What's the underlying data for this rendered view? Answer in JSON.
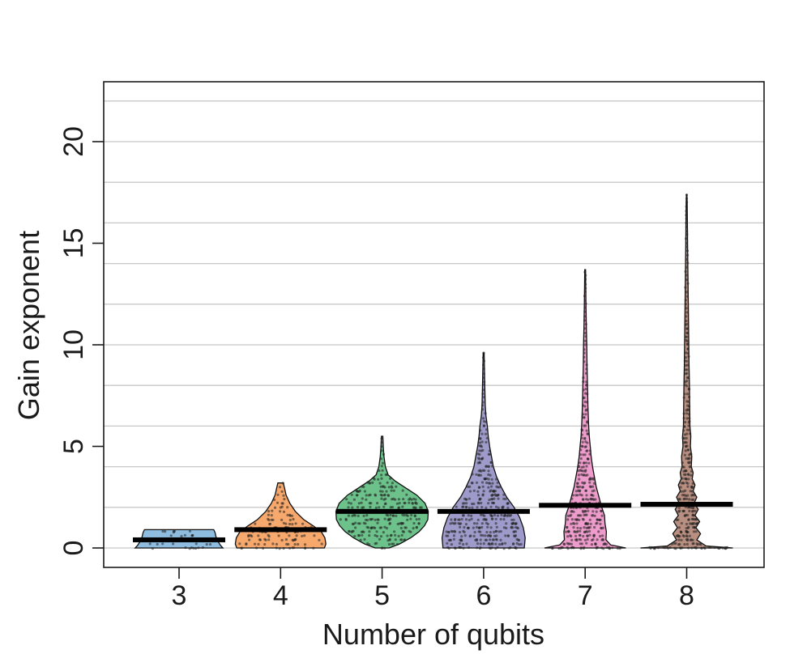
{
  "chart_data": {
    "type": "violin",
    "title": "",
    "xlabel": "Number of qubits",
    "ylabel": "Gain exponent",
    "ylim": [
      -1,
      22.5
    ],
    "yticks": [
      0,
      5,
      10,
      15,
      20
    ],
    "grid": true,
    "categories": [
      "3",
      "4",
      "5",
      "6",
      "7",
      "8"
    ],
    "series": [
      {
        "category": "3",
        "color": "#8fbde0",
        "min": 0.0,
        "max": 0.9,
        "median": 0.4,
        "density": [
          [
            0.0,
            0.95
          ],
          [
            0.12,
            0.9
          ],
          [
            0.3,
            0.85
          ],
          [
            0.55,
            0.8
          ],
          [
            0.75,
            0.78
          ],
          [
            0.9,
            0.75
          ]
        ]
      },
      {
        "category": "4",
        "color": "#f7a86c",
        "min": 0.0,
        "max": 3.2,
        "median": 0.9,
        "density": [
          [
            0.0,
            0.95
          ],
          [
            0.2,
            0.98
          ],
          [
            0.5,
            0.96
          ],
          [
            0.8,
            0.88
          ],
          [
            1.1,
            0.7
          ],
          [
            1.4,
            0.5
          ],
          [
            1.8,
            0.32
          ],
          [
            2.2,
            0.2
          ],
          [
            2.6,
            0.12
          ],
          [
            2.9,
            0.09
          ],
          [
            3.2,
            0.06
          ]
        ]
      },
      {
        "category": "5",
        "color": "#6cc28a",
        "min": 0.0,
        "max": 5.5,
        "median": 1.8,
        "density": [
          [
            0.0,
            0.15
          ],
          [
            0.2,
            0.38
          ],
          [
            0.5,
            0.62
          ],
          [
            0.8,
            0.8
          ],
          [
            1.1,
            0.92
          ],
          [
            1.4,
            0.99
          ],
          [
            1.8,
            1.0
          ],
          [
            2.2,
            0.93
          ],
          [
            2.6,
            0.75
          ],
          [
            3.0,
            0.48
          ],
          [
            3.3,
            0.28
          ],
          [
            3.6,
            0.13
          ],
          [
            4.0,
            0.07
          ],
          [
            4.5,
            0.04
          ],
          [
            5.0,
            0.025
          ],
          [
            5.5,
            0.015
          ]
        ]
      },
      {
        "category": "6",
        "color": "#9e9bcb",
        "min": 0.0,
        "max": 9.6,
        "median": 1.8,
        "density": [
          [
            0.0,
            0.88
          ],
          [
            0.5,
            0.9
          ],
          [
            1.0,
            0.86
          ],
          [
            1.5,
            0.78
          ],
          [
            2.0,
            0.66
          ],
          [
            2.5,
            0.5
          ],
          [
            3.0,
            0.38
          ],
          [
            3.5,
            0.28
          ],
          [
            4.0,
            0.21
          ],
          [
            4.5,
            0.17
          ],
          [
            5.0,
            0.13
          ],
          [
            5.5,
            0.1
          ],
          [
            6.0,
            0.08
          ],
          [
            6.5,
            0.05
          ],
          [
            7.0,
            0.035
          ],
          [
            8.0,
            0.025
          ],
          [
            9.0,
            0.015
          ],
          [
            9.6,
            0.01
          ]
        ]
      },
      {
        "category": "7",
        "color": "#ee9ccb",
        "min": 0.0,
        "max": 13.7,
        "median": 2.1,
        "density": [
          [
            0.0,
            0.88
          ],
          [
            0.15,
            0.55
          ],
          [
            0.4,
            0.45
          ],
          [
            0.8,
            0.46
          ],
          [
            1.2,
            0.43
          ],
          [
            1.6,
            0.42
          ],
          [
            2.0,
            0.36
          ],
          [
            2.5,
            0.3
          ],
          [
            3.0,
            0.24
          ],
          [
            3.5,
            0.2
          ],
          [
            4.0,
            0.16
          ],
          [
            4.5,
            0.13
          ],
          [
            5.0,
            0.11
          ],
          [
            5.5,
            0.09
          ],
          [
            6.0,
            0.075
          ],
          [
            7.0,
            0.06
          ],
          [
            8.0,
            0.05
          ],
          [
            9.0,
            0.04
          ],
          [
            10.0,
            0.035
          ],
          [
            11.0,
            0.025
          ],
          [
            12.0,
            0.018
          ],
          [
            13.0,
            0.012
          ],
          [
            13.7,
            0.008
          ]
        ]
      },
      {
        "category": "8",
        "color": "#b88f80",
        "min": 0.0,
        "max": 17.4,
        "median": 2.15,
        "density": [
          [
            0.0,
            1.0
          ],
          [
            0.1,
            0.42
          ],
          [
            0.4,
            0.22
          ],
          [
            0.7,
            0.3
          ],
          [
            1.0,
            0.2
          ],
          [
            1.3,
            0.28
          ],
          [
            1.6,
            0.18
          ],
          [
            1.9,
            0.25
          ],
          [
            2.2,
            0.16
          ],
          [
            2.5,
            0.22
          ],
          [
            2.8,
            0.14
          ],
          [
            3.1,
            0.18
          ],
          [
            3.4,
            0.12
          ],
          [
            3.7,
            0.14
          ],
          [
            4.0,
            0.1
          ],
          [
            4.5,
            0.11
          ],
          [
            5.0,
            0.08
          ],
          [
            5.5,
            0.09
          ],
          [
            6.0,
            0.07
          ],
          [
            7.0,
            0.065
          ],
          [
            8.0,
            0.06
          ],
          [
            9.0,
            0.05
          ],
          [
            10.0,
            0.045
          ],
          [
            11.0,
            0.04
          ],
          [
            12.0,
            0.035
          ],
          [
            13.0,
            0.03
          ],
          [
            14.0,
            0.025
          ],
          [
            15.0,
            0.02
          ],
          [
            16.0,
            0.015
          ],
          [
            17.0,
            0.01
          ],
          [
            17.4,
            0.005
          ]
        ]
      }
    ]
  }
}
